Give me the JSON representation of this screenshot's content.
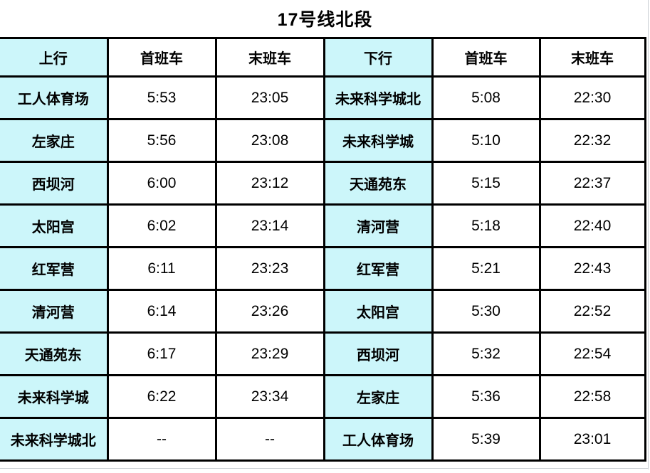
{
  "title": "17号线北段",
  "colors": {
    "station_bg": "#ccf6fa",
    "border": "#000000"
  },
  "table": {
    "headers": [
      "上行",
      "首班车",
      "末班车",
      "下行",
      "首班车",
      "末班车"
    ],
    "rows": [
      [
        "工人体育场",
        "5:53",
        "23:05",
        "未来科学城北",
        "5:08",
        "22:30"
      ],
      [
        "左家庄",
        "5:56",
        "23:08",
        "未来科学城",
        "5:10",
        "22:32"
      ],
      [
        "西坝河",
        "6:00",
        "23:12",
        "天通苑东",
        "5:15",
        "22:37"
      ],
      [
        "太阳宫",
        "6:02",
        "23:14",
        "清河营",
        "5:18",
        "22:40"
      ],
      [
        "红军营",
        "6:11",
        "23:23",
        "红军营",
        "5:21",
        "22:43"
      ],
      [
        "清河营",
        "6:14",
        "23:26",
        "太阳宫",
        "5:30",
        "22:52"
      ],
      [
        "天通苑东",
        "6:17",
        "23:29",
        "西坝河",
        "5:32",
        "22:54"
      ],
      [
        "未来科学城",
        "6:22",
        "23:34",
        "左家庄",
        "5:36",
        "22:58"
      ],
      [
        "未来科学城北",
        "--",
        "--",
        "工人体育场",
        "5:39",
        "23:01"
      ]
    ]
  }
}
